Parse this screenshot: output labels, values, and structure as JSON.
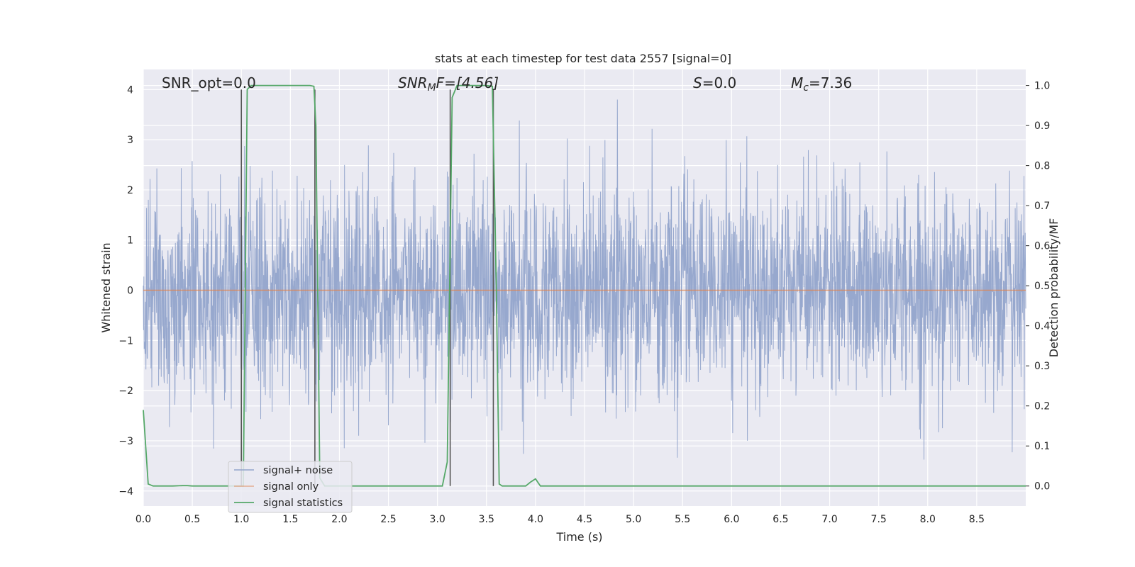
{
  "chart_data": {
    "type": "line",
    "title": "stats at each timestep for test data 2557 [signal=0]",
    "xlabel": "Time (s)",
    "ylabel_left": "Whitened strain",
    "ylabel_right": "Detection probability/MF",
    "xlim": [
      0.0,
      9.0
    ],
    "ylim_left": [
      -4.3,
      4.4
    ],
    "ylim_right": [
      -0.05,
      1.04
    ],
    "x_ticks": [
      "0.0",
      "0.5",
      "1.0",
      "1.5",
      "2.0",
      "2.5",
      "3.0",
      "3.5",
      "4.0",
      "4.5",
      "5.0",
      "5.5",
      "6.0",
      "6.5",
      "7.0",
      "7.5",
      "8.0",
      "8.5"
    ],
    "y_ticks_left": [
      "4",
      "3",
      "2",
      "1",
      "0",
      "−1",
      "−2",
      "−3",
      "−4"
    ],
    "y_ticks_right": [
      "1.0",
      "0.9",
      "0.8",
      "0.7",
      "0.6",
      "0.5",
      "0.4",
      "0.3",
      "0.2",
      "0.1",
      "0.0"
    ],
    "grid": true,
    "legend_position": "lower-left",
    "annotations": {
      "snr_opt": "SNR_opt=0.0",
      "snr_mf_main": "SNR",
      "snr_mf_sub": "M",
      "snr_mf_rest": "F=[4.56]",
      "s_main": "S",
      "s_rest": "=0.0",
      "mc_main": "M",
      "mc_sub": "c",
      "mc_rest": "=7.36"
    },
    "series": [
      {
        "name": "signal+ noise",
        "axis": "left",
        "color": "#92a4cb",
        "description_values": "dense whitened noise, roughly in [-3.9, 3.8]"
      },
      {
        "name": "signal only",
        "axis": "left",
        "color": "#dd8452",
        "x": [
          0.0,
          9.0
        ],
        "y": [
          0.0,
          0.0
        ]
      },
      {
        "name": "signal statistics",
        "axis": "right",
        "color": "#55a868",
        "x": [
          0.0,
          0.05,
          0.1,
          0.15,
          0.2,
          0.3,
          0.4,
          0.45,
          0.5,
          0.6,
          0.7,
          0.8,
          0.9,
          1.0,
          1.02,
          1.06,
          1.1,
          1.2,
          1.4,
          1.6,
          1.7,
          1.74,
          1.76,
          1.8,
          1.85,
          1.9,
          2.0,
          2.5,
          3.0,
          3.05,
          3.1,
          3.15,
          3.2,
          3.3,
          3.4,
          3.5,
          3.56,
          3.6,
          3.63,
          3.66,
          3.7,
          3.8,
          3.9,
          3.95,
          4.0,
          4.05,
          4.1,
          4.5,
          5.0,
          6.0,
          7.0,
          8.0,
          9.0
        ],
        "y": [
          0.19,
          0.005,
          0.0,
          0.0,
          0.0,
          0.0,
          0.001,
          0.001,
          0.0,
          0.0,
          0.0,
          0.0,
          0.0,
          0.0,
          0.0,
          0.99,
          1.0,
          1.0,
          1.0,
          1.0,
          1.0,
          0.998,
          0.9,
          0.02,
          0.0,
          0.0,
          0.0,
          0.0,
          0.0,
          0.0,
          0.06,
          0.97,
          1.0,
          1.0,
          1.0,
          1.0,
          0.998,
          0.5,
          0.005,
          0.0,
          0.0,
          0.0,
          0.0,
          0.01,
          0.018,
          0.0,
          0.0,
          0.0,
          0.0,
          0.0,
          0.0,
          0.0,
          0.0
        ]
      }
    ],
    "vertical_markers": [
      {
        "x": 1.0,
        "y_left_top": 4.0
      },
      {
        "x": 1.75,
        "y_left_top": 4.0
      },
      {
        "x": 3.13,
        "y_left_top": 4.0
      },
      {
        "x": 3.57,
        "y_left_top": 4.0
      }
    ]
  },
  "colors": {
    "axes_bg": "#eaeaf2",
    "grid": "#ffffff",
    "noise": "#92a4cb",
    "signal_only": "#dd8452",
    "stats": "#55a868",
    "marker": "#555555"
  },
  "legend": {
    "items": [
      {
        "label": "signal+ noise",
        "color": "#92a4cb"
      },
      {
        "label": "signal only",
        "color": "#dd8452"
      },
      {
        "label": "signal statistics",
        "color": "#55a868"
      }
    ]
  }
}
